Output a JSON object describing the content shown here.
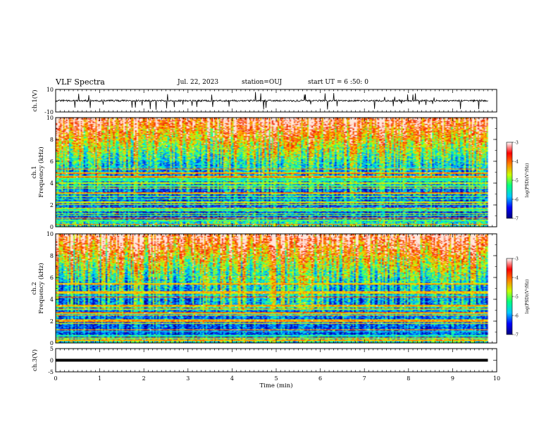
{
  "header": {
    "title": "VLF Spectra",
    "date": "Jul. 22, 2023",
    "station": "station=OUJ",
    "start": "start UT = 6 :50: 0"
  },
  "chart_data": [
    {
      "type": "line",
      "panel": "ch1-waveform",
      "ylabel": "ch.1(V)",
      "ylim": [
        -10,
        10
      ],
      "ytick_labels": [
        "10",
        "-10"
      ],
      "xlim": [
        0,
        10
      ],
      "trace_level_V": 0,
      "trace_extent_min": 9.8,
      "color": "#000000"
    },
    {
      "type": "heatmap",
      "panel": "ch1-spectrogram",
      "ylabel": "ch.1 Frequency (kHz)",
      "ylim": [
        0,
        10
      ],
      "ytick_labels": [
        "0",
        "2",
        "4",
        "6",
        "8",
        "10"
      ],
      "xlim": [
        0,
        10
      ],
      "data_extent_min": 9.8,
      "colorbar": {
        "label": "log(PSD)(V²/Hz)",
        "range": [
          -7,
          -3
        ],
        "tick_labels": [
          "-3",
          "-4",
          "-5",
          "-6",
          "-7"
        ],
        "colors": [
          "#000080",
          "#0000ff",
          "#00c8ff",
          "#00ff80",
          "#c8ff00",
          "#ff8000",
          "#ff0000",
          "#ffffff"
        ]
      }
    },
    {
      "type": "heatmap",
      "panel": "ch2-spectrogram",
      "ylabel": "ch.2 Frequency (kHz)",
      "ylim": [
        0,
        10
      ],
      "ytick_labels": [
        "0",
        "2",
        "4",
        "6",
        "8",
        "10"
      ],
      "xlim": [
        0,
        10
      ],
      "data_extent_min": 9.8,
      "colorbar": {
        "label": "log(PSD)(V²/Hz)",
        "range": [
          -7,
          -3
        ],
        "tick_labels": [
          "-3",
          "-4",
          "-5",
          "-6",
          "-7"
        ],
        "colors": [
          "#000080",
          "#0000ff",
          "#00c8ff",
          "#00ff80",
          "#c8ff00",
          "#ff8000",
          "#ff0000",
          "#ffffff"
        ]
      }
    },
    {
      "type": "line",
      "panel": "ch3-waveform",
      "ylabel": "ch.3(V)",
      "ylim": [
        -5,
        5
      ],
      "ytick_labels": [
        "5",
        "0",
        "-5"
      ],
      "xlim": [
        0,
        10
      ],
      "trace_level_V": 0,
      "trace_extent_min": 9.8,
      "color": "#000000"
    }
  ],
  "xaxis": {
    "label": "Time (min)",
    "tick_labels": [
      "0",
      "1",
      "2",
      "3",
      "4",
      "5",
      "6",
      "7",
      "8",
      "9",
      "10"
    ]
  }
}
